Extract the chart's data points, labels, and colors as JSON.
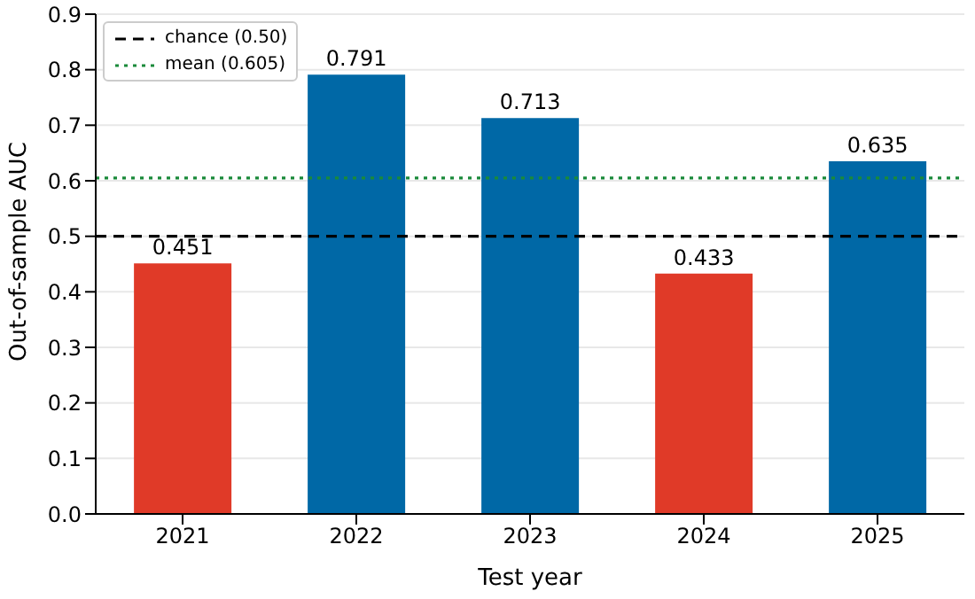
{
  "chart_data": {
    "type": "bar",
    "xlabel": "Test year",
    "ylabel": "Out-of-sample AUC",
    "categories": [
      "2021",
      "2022",
      "2023",
      "2024",
      "2025"
    ],
    "values": [
      0.451,
      0.791,
      0.713,
      0.433,
      0.635
    ],
    "colors": [
      "#e03a28",
      "#0068a6",
      "#0068a6",
      "#e03a28",
      "#0068a6"
    ],
    "ylim": [
      0,
      0.9
    ],
    "yticks": [
      {
        "value": 0,
        "label": "0.0"
      },
      {
        "value": 0.1,
        "label": "0.1"
      },
      {
        "value": 0.2,
        "label": "0.2"
      },
      {
        "value": 0.3,
        "label": "0.3"
      },
      {
        "value": 0.4,
        "label": "0.4"
      },
      {
        "value": 0.5,
        "label": "0.5"
      },
      {
        "value": 0.6,
        "label": "0.6"
      },
      {
        "value": 0.7,
        "label": "0.7"
      },
      {
        "value": 0.8,
        "label": "0.8"
      },
      {
        "value": 0.9,
        "label": "0.9"
      }
    ],
    "ref_lines": [
      {
        "axis": "y",
        "value": 0.5,
        "label": "chance (0.50)",
        "color": "#000000",
        "line_style": "dashed"
      },
      {
        "axis": "y",
        "value": 0.605,
        "label": "mean (0.605)",
        "color": "#1a8a3a",
        "line_style": "dotted"
      }
    ],
    "data_labels": true,
    "grid": "y",
    "legend": "top left"
  }
}
